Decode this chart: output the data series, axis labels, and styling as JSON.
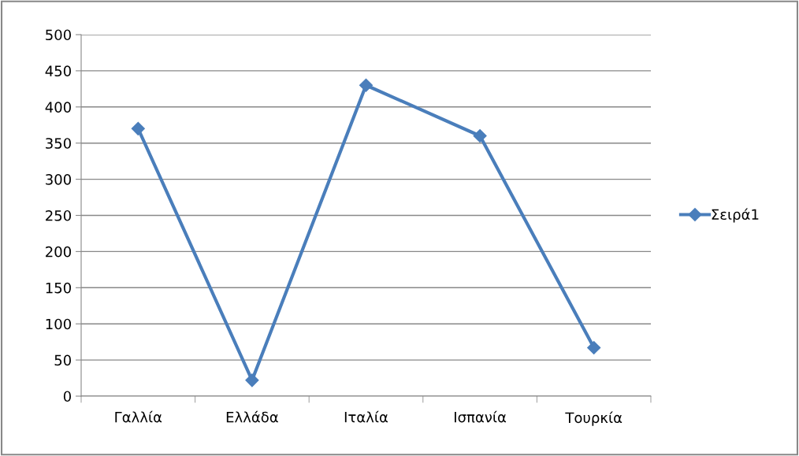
{
  "chart_data": {
    "type": "line",
    "categories": [
      "Γαλλία",
      "Ελλάδα",
      "Ιταλία",
      "Ισπανία",
      "Τουρκία"
    ],
    "series": [
      {
        "name": "Σειρά1",
        "color": "#4a7ebb",
        "values": [
          370,
          22,
          430,
          360,
          67
        ]
      }
    ],
    "ylim": [
      0,
      500
    ],
    "yticks": [
      0,
      50,
      100,
      150,
      200,
      250,
      300,
      350,
      400,
      450,
      500
    ],
    "grid": "y",
    "legend": "right",
    "marker": "diamond",
    "line_style": "solid"
  }
}
